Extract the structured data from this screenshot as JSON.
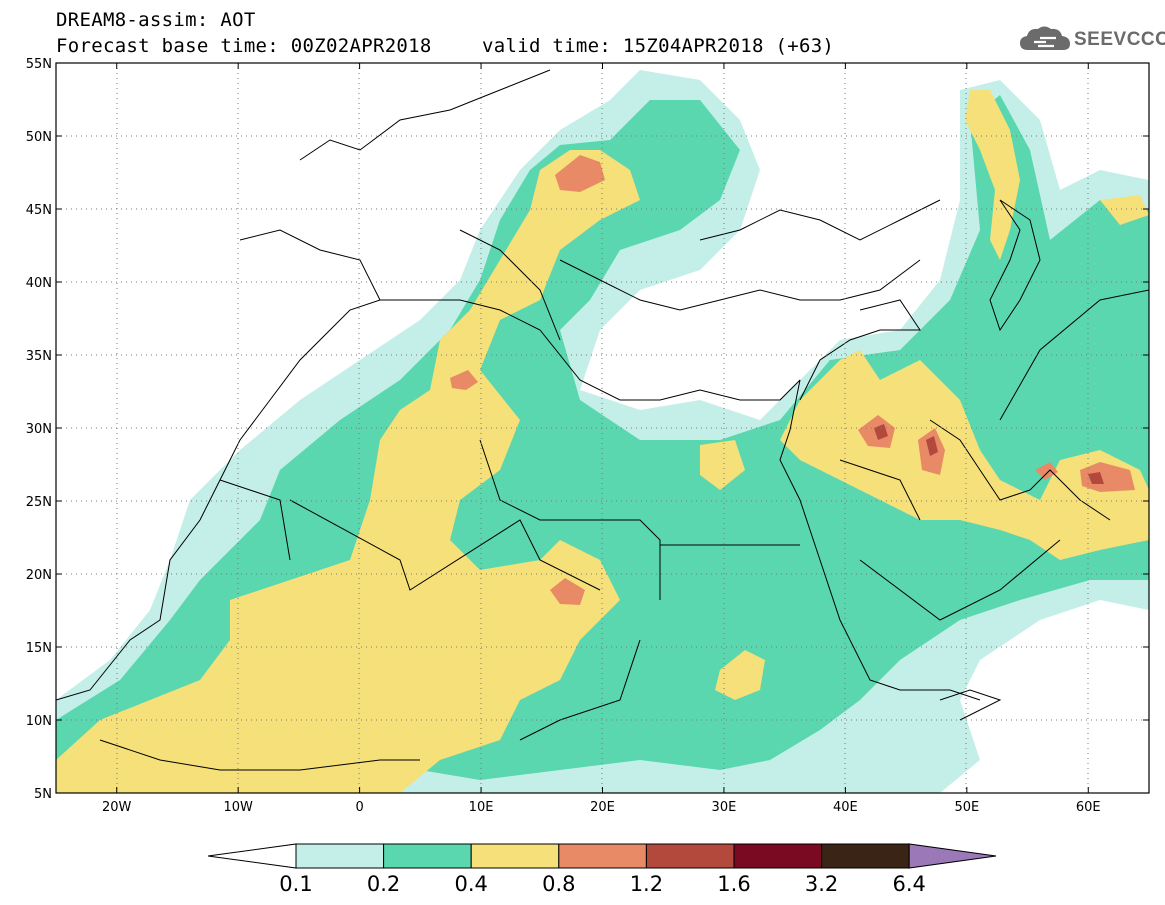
{
  "header": {
    "line1": "DREAM8-assim: AOT",
    "line2": "Forecast base time: 00Z02APR2018",
    "line2b": "valid time: 15Z04APR2018 (+63)"
  },
  "logo": {
    "text": "SEEVCCC",
    "icon": "cloud-icon"
  },
  "map": {
    "lon_labels": [
      "20W",
      "10W",
      "0",
      "10E",
      "20E",
      "30E",
      "40E",
      "50E",
      "60E"
    ],
    "lat_labels": [
      "55N",
      "50N",
      "45N",
      "40N",
      "35N",
      "30N",
      "25N",
      "20N",
      "15N",
      "10N",
      "5N"
    ],
    "lon_range": [
      -25,
      65
    ],
    "lat_range": [
      5,
      55
    ]
  },
  "colorbar": {
    "labels": [
      "0.1",
      "0.2",
      "0.4",
      "0.8",
      "1.2",
      "1.6",
      "3.2",
      "6.4"
    ],
    "colors": [
      "#ffffff",
      "#c4efe8",
      "#5ad7ae",
      "#f5e07a",
      "#e88a66",
      "#b3483c",
      "#7a0a22",
      "#3a2415",
      "#9b78b8"
    ]
  }
}
